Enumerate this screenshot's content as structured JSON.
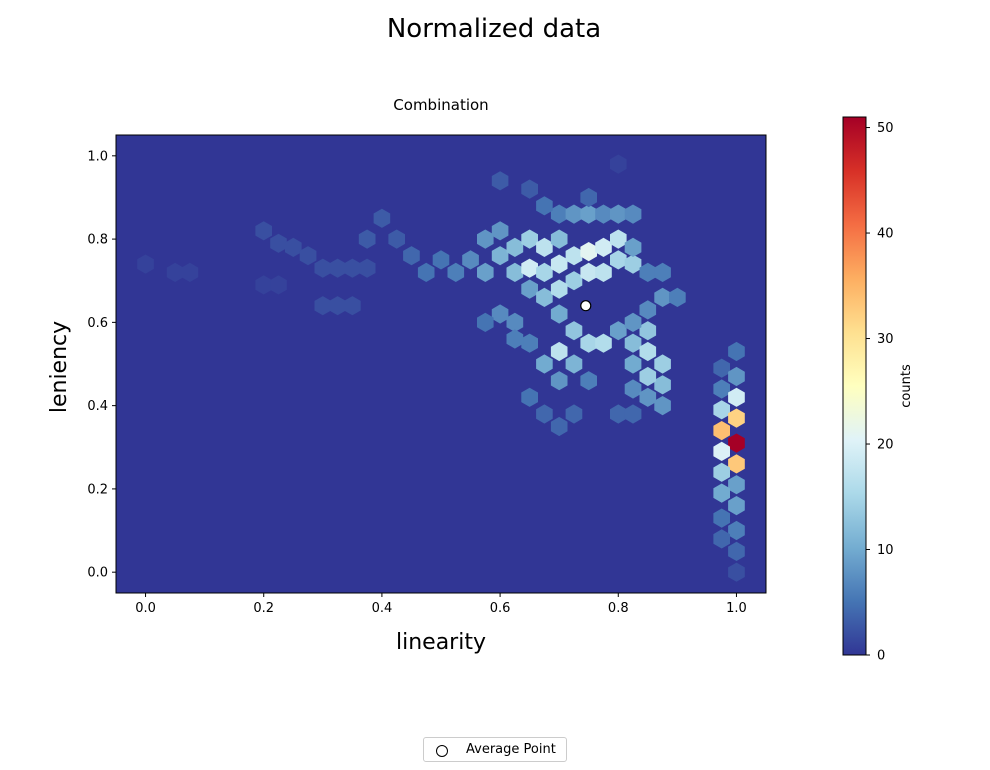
{
  "figure": {
    "suptitle": "Normalized data"
  },
  "legend": {
    "label": "Average Point"
  },
  "chart_data": {
    "type": "heatmap",
    "subtype": "hexbin",
    "title": "Combination",
    "xlabel": "linearity",
    "ylabel": "leniency",
    "xlim": [
      -0.05,
      1.05
    ],
    "ylim": [
      -0.05,
      1.05
    ],
    "xticks": [
      "0.0",
      "0.2",
      "0.4",
      "0.6",
      "0.8",
      "1.0"
    ],
    "yticks": [
      "0.0",
      "0.2",
      "0.4",
      "0.6",
      "0.8",
      "1.0"
    ],
    "grid": false,
    "legend_position": "bottom-center",
    "colormap": "RdYlBu_r",
    "colorbar": {
      "label": "counts",
      "min": 0,
      "max": 51,
      "ticks": [
        "0",
        "10",
        "20",
        "30",
        "40",
        "50"
      ]
    },
    "background_color": "#313695",
    "average_point": {
      "x": 0.745,
      "y": 0.64
    },
    "hex_cells": [
      [
        0.0,
        0.74,
        1
      ],
      [
        0.05,
        0.72,
        1
      ],
      [
        0.075,
        0.72,
        1
      ],
      [
        0.2,
        0.82,
        2
      ],
      [
        0.225,
        0.79,
        2
      ],
      [
        0.25,
        0.78,
        2
      ],
      [
        0.275,
        0.76,
        2
      ],
      [
        0.2,
        0.69,
        1
      ],
      [
        0.225,
        0.69,
        1
      ],
      [
        0.3,
        0.73,
        2
      ],
      [
        0.325,
        0.73,
        2
      ],
      [
        0.35,
        0.73,
        2
      ],
      [
        0.375,
        0.73,
        2
      ],
      [
        0.3,
        0.64,
        2
      ],
      [
        0.325,
        0.64,
        2
      ],
      [
        0.35,
        0.64,
        2
      ],
      [
        0.375,
        0.8,
        3
      ],
      [
        0.4,
        0.85,
        3
      ],
      [
        0.425,
        0.8,
        3
      ],
      [
        0.45,
        0.76,
        4
      ],
      [
        0.475,
        0.72,
        5
      ],
      [
        0.5,
        0.75,
        5
      ],
      [
        0.525,
        0.72,
        6
      ],
      [
        0.55,
        0.75,
        7
      ],
      [
        0.575,
        0.72,
        9
      ],
      [
        0.575,
        0.8,
        8
      ],
      [
        0.6,
        0.76,
        11
      ],
      [
        0.6,
        0.82,
        8
      ],
      [
        0.625,
        0.72,
        12
      ],
      [
        0.625,
        0.78,
        12
      ],
      [
        0.65,
        0.73,
        19
      ],
      [
        0.65,
        0.8,
        14
      ],
      [
        0.675,
        0.72,
        15
      ],
      [
        0.675,
        0.78,
        17
      ],
      [
        0.7,
        0.74,
        18
      ],
      [
        0.7,
        0.8,
        12
      ],
      [
        0.725,
        0.76,
        17
      ],
      [
        0.725,
        0.7,
        14
      ],
      [
        0.75,
        0.77,
        21
      ],
      [
        0.75,
        0.72,
        18
      ],
      [
        0.775,
        0.78,
        19
      ],
      [
        0.775,
        0.72,
        17
      ],
      [
        0.8,
        0.75,
        15
      ],
      [
        0.8,
        0.8,
        17
      ],
      [
        0.825,
        0.74,
        14
      ],
      [
        0.825,
        0.78,
        9
      ],
      [
        0.85,
        0.72,
        6
      ],
      [
        0.875,
        0.72,
        6
      ],
      [
        0.875,
        0.66,
        8
      ],
      [
        0.9,
        0.66,
        6
      ],
      [
        0.85,
        0.63,
        7
      ],
      [
        0.65,
        0.68,
        9
      ],
      [
        0.675,
        0.66,
        12
      ],
      [
        0.7,
        0.68,
        16
      ],
      [
        0.7,
        0.62,
        10
      ],
      [
        0.725,
        0.58,
        13
      ],
      [
        0.75,
        0.55,
        15
      ],
      [
        0.775,
        0.55,
        16
      ],
      [
        0.7,
        0.53,
        17
      ],
      [
        0.725,
        0.5,
        11
      ],
      [
        0.675,
        0.5,
        10
      ],
      [
        0.7,
        0.46,
        8
      ],
      [
        0.75,
        0.46,
        6
      ],
      [
        0.625,
        0.6,
        7
      ],
      [
        0.6,
        0.62,
        7
      ],
      [
        0.575,
        0.6,
        5
      ],
      [
        0.65,
        0.55,
        6
      ],
      [
        0.625,
        0.56,
        6
      ],
      [
        0.825,
        0.55,
        12
      ],
      [
        0.85,
        0.53,
        16
      ],
      [
        0.85,
        0.58,
        13
      ],
      [
        0.875,
        0.5,
        14
      ],
      [
        0.875,
        0.45,
        12
      ],
      [
        0.85,
        0.47,
        14
      ],
      [
        0.825,
        0.5,
        10
      ],
      [
        0.875,
        0.4,
        8
      ],
      [
        0.825,
        0.44,
        7
      ],
      [
        0.85,
        0.42,
        8
      ],
      [
        0.8,
        0.58,
        9
      ],
      [
        0.825,
        0.6,
        8
      ],
      [
        0.65,
        0.42,
        5
      ],
      [
        0.675,
        0.38,
        4
      ],
      [
        0.7,
        0.35,
        4
      ],
      [
        0.725,
        0.38,
        4
      ],
      [
        0.8,
        0.38,
        4
      ],
      [
        0.825,
        0.38,
        4
      ],
      [
        0.7,
        0.86,
        6
      ],
      [
        0.725,
        0.86,
        8
      ],
      [
        0.75,
        0.86,
        9
      ],
      [
        0.775,
        0.86,
        7
      ],
      [
        0.8,
        0.86,
        8
      ],
      [
        0.825,
        0.86,
        7
      ],
      [
        0.675,
        0.88,
        5
      ],
      [
        0.75,
        0.9,
        4
      ],
      [
        0.65,
        0.92,
        3
      ],
      [
        0.6,
        0.94,
        3
      ],
      [
        0.8,
        0.98,
        1
      ],
      [
        0.975,
        0.49,
        4
      ],
      [
        1.0,
        0.53,
        5
      ],
      [
        1.0,
        0.47,
        8
      ],
      [
        0.975,
        0.44,
        6
      ],
      [
        1.0,
        0.42,
        19
      ],
      [
        0.975,
        0.39,
        15
      ],
      [
        1.0,
        0.37,
        32
      ],
      [
        0.975,
        0.34,
        34
      ],
      [
        1.0,
        0.31,
        51
      ],
      [
        0.975,
        0.29,
        20
      ],
      [
        1.0,
        0.26,
        33
      ],
      [
        0.975,
        0.24,
        14
      ],
      [
        1.0,
        0.21,
        9
      ],
      [
        0.975,
        0.19,
        10
      ],
      [
        1.0,
        0.16,
        9
      ],
      [
        0.975,
        0.13,
        5
      ],
      [
        1.0,
        0.1,
        6
      ],
      [
        0.975,
        0.08,
        4
      ],
      [
        1.0,
        0.05,
        4
      ],
      [
        1.0,
        0.0,
        2
      ]
    ]
  }
}
